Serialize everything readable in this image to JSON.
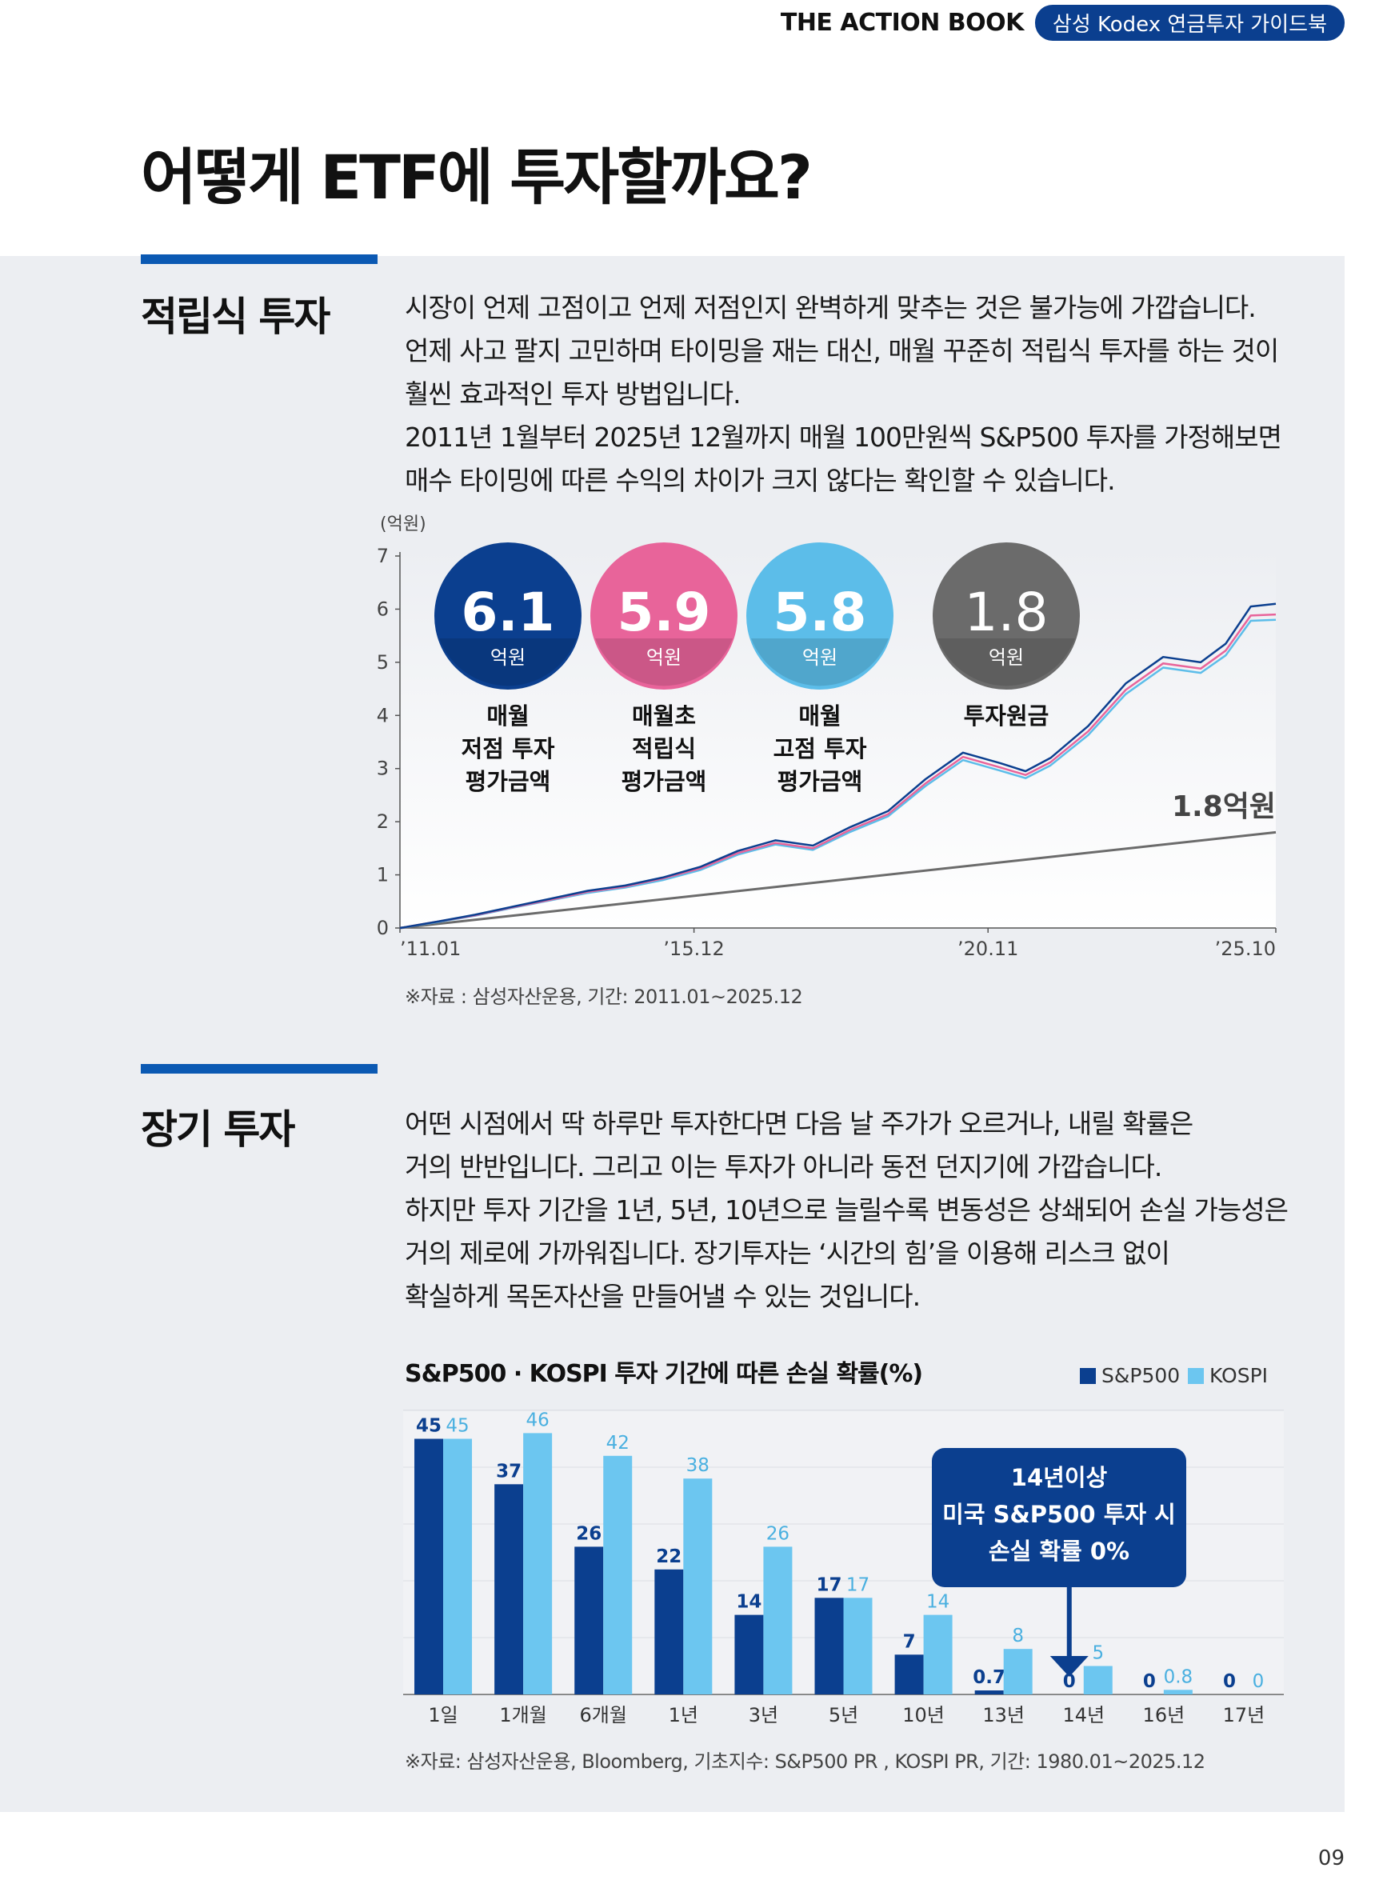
{
  "header": {
    "brand_title": "THE ACTION BOOK",
    "brand_pill": "삼성 Kodex 연금투자 가이드북"
  },
  "page_title": "어떻게 ETF에 투자할까요?",
  "section1": {
    "title": "적립식 투자",
    "paragraph": [
      "시장이 언제 고점이고 언제 저점인지 완벽하게 맞추는 것은 불가능에 가깝습니다.",
      "언제 사고 팔지 고민하며 타이밍을 재는 대신, 매월 꾸준히 적립식 투자를 하는 것이",
      "훨씬 효과적인 투자 방법입니다.",
      "2011년 1월부터 2025년 12월까지 매월 100만원씩 S&P500 투자를 가정해보면",
      "매수 타이밍에 따른 수익의 차이가 크지 않다는 확인할 수 있습니다."
    ],
    "source": "※자료 : 삼성자산운용, 기간: 2011.01~2025.12"
  },
  "section2": {
    "title": "장기 투자",
    "paragraph": [
      "어떤 시점에서 딱 하루만 투자한다면 다음 날 주가가 오르거나, 내릴 확률은",
      "거의 반반입니다. 그리고 이는 투자가 아니라 동전 던지기에 가깝습니다.",
      "하지만 투자 기간을 1년, 5년, 10년으로 늘릴수록 변동성은 상쇄되어 손실 가능성은",
      "거의 제로에 가까워집니다. 장기투자는 ‘시간의 힘’을 이용해 리스크 없이",
      "확실하게 목돈자산을 만들어낼 수 있는 것입니다."
    ],
    "source": "※자료: 삼성자산운용, Bloomberg, 기초지수: S&P500 PR , KOSPI PR, 기간: 1980.01~2025.12"
  },
  "page_number": "09",
  "colors": {
    "navy": "#0b3f8f",
    "pink": "#e8649a",
    "sky": "#5cbde9",
    "gray": "#6b6b6b",
    "bar_dark": "#0b3f8f",
    "bar_light": "#6cc6f0"
  },
  "chart_data": [
    {
      "type": "line",
      "unit_label": "(억원)",
      "ylim": [
        0,
        7
      ],
      "yticks": [
        "0",
        "1",
        "2",
        "3",
        "4",
        "5",
        "6",
        "7"
      ],
      "xticks": [
        "’11.01",
        "’15.12",
        "’20.11",
        "’25.10"
      ],
      "badges": [
        {
          "value": "6.1",
          "unit": "억원",
          "label": [
            "매월",
            "저점 투자",
            "평가금액"
          ]
        },
        {
          "value": "5.9",
          "unit": "억원",
          "label": [
            "매월초",
            "적립식",
            "평가금액"
          ]
        },
        {
          "value": "5.8",
          "unit": "억원",
          "label": [
            "매월",
            "고점 투자",
            "평가금액"
          ]
        },
        {
          "value": "1.8",
          "unit": "억원",
          "label": [
            "투자원금"
          ]
        }
      ],
      "end_label": "1.8억원",
      "series": [
        {
          "name": "매월 저점 투자",
          "points": [
            [
              0,
              0
            ],
            [
              3,
              0.12
            ],
            [
              6,
              0.25
            ],
            [
              9,
              0.4
            ],
            [
              12,
              0.55
            ],
            [
              15,
              0.7
            ],
            [
              18,
              0.8
            ],
            [
              21,
              0.95
            ],
            [
              24,
              1.15
            ],
            [
              27,
              1.45
            ],
            [
              30,
              1.65
            ],
            [
              33,
              1.55
            ],
            [
              36,
              1.9
            ],
            [
              39,
              2.2
            ],
            [
              42,
              2.8
            ],
            [
              45,
              3.3
            ],
            [
              48,
              3.1
            ],
            [
              50,
              2.95
            ],
            [
              52,
              3.2
            ],
            [
              55,
              3.8
            ],
            [
              58,
              4.6
            ],
            [
              61,
              5.1
            ],
            [
              64,
              5.0
            ],
            [
              66,
              5.35
            ],
            [
              68,
              6.05
            ],
            [
              70,
              6.1
            ]
          ]
        },
        {
          "name": "매월초 적립식",
          "points": [
            [
              0,
              0
            ],
            [
              3,
              0.12
            ],
            [
              6,
              0.24
            ],
            [
              9,
              0.39
            ],
            [
              12,
              0.53
            ],
            [
              15,
              0.68
            ],
            [
              18,
              0.78
            ],
            [
              21,
              0.93
            ],
            [
              24,
              1.12
            ],
            [
              27,
              1.41
            ],
            [
              30,
              1.6
            ],
            [
              33,
              1.5
            ],
            [
              36,
              1.85
            ],
            [
              39,
              2.14
            ],
            [
              42,
              2.72
            ],
            [
              45,
              3.22
            ],
            [
              48,
              3.02
            ],
            [
              50,
              2.88
            ],
            [
              52,
              3.12
            ],
            [
              55,
              3.7
            ],
            [
              58,
              4.48
            ],
            [
              61,
              4.98
            ],
            [
              64,
              4.88
            ],
            [
              66,
              5.22
            ],
            [
              68,
              5.88
            ],
            [
              70,
              5.9
            ]
          ]
        },
        {
          "name": "매월 고점 투자",
          "points": [
            [
              0,
              0
            ],
            [
              3,
              0.11
            ],
            [
              6,
              0.23
            ],
            [
              9,
              0.38
            ],
            [
              12,
              0.52
            ],
            [
              15,
              0.66
            ],
            [
              18,
              0.76
            ],
            [
              21,
              0.9
            ],
            [
              24,
              1.09
            ],
            [
              27,
              1.38
            ],
            [
              30,
              1.57
            ],
            [
              33,
              1.47
            ],
            [
              36,
              1.81
            ],
            [
              39,
              2.1
            ],
            [
              42,
              2.67
            ],
            [
              45,
              3.16
            ],
            [
              48,
              2.96
            ],
            [
              50,
              2.82
            ],
            [
              52,
              3.06
            ],
            [
              55,
              3.63
            ],
            [
              58,
              4.4
            ],
            [
              61,
              4.9
            ],
            [
              64,
              4.8
            ],
            [
              66,
              5.13
            ],
            [
              68,
              5.78
            ],
            [
              70,
              5.8
            ]
          ]
        },
        {
          "name": "투자원금",
          "points": [
            [
              0,
              0
            ],
            [
              70,
              1.8
            ]
          ]
        }
      ]
    },
    {
      "type": "bar",
      "title": "S&P500 · KOSPI 투자 기간에 따른 손실 확률(%)",
      "categories": [
        "1일",
        "1개월",
        "6개월",
        "1년",
        "3년",
        "5년",
        "10년",
        "13년",
        "14년",
        "16년",
        "17년"
      ],
      "ylim": [
        0,
        50
      ],
      "series": [
        {
          "name": "S&P500",
          "values": [
            45,
            37,
            26,
            22,
            14,
            17,
            7,
            0.7,
            0,
            0,
            0
          ],
          "labels": [
            "45",
            "37",
            "26",
            "22",
            "14",
            "17",
            "7",
            "0.7",
            "0",
            "0",
            "0"
          ]
        },
        {
          "name": "KOSPI",
          "values": [
            45,
            46,
            42,
            38,
            26,
            17,
            14,
            8,
            5,
            0.8,
            0
          ],
          "labels": [
            "45",
            "46",
            "42",
            "38",
            "26",
            "17",
            "14",
            "8",
            "5",
            "0.8",
            "0"
          ]
        }
      ],
      "callout": [
        "14년이상",
        "미국 S&P500 투자 시",
        "손실 확률 0%"
      ]
    }
  ]
}
